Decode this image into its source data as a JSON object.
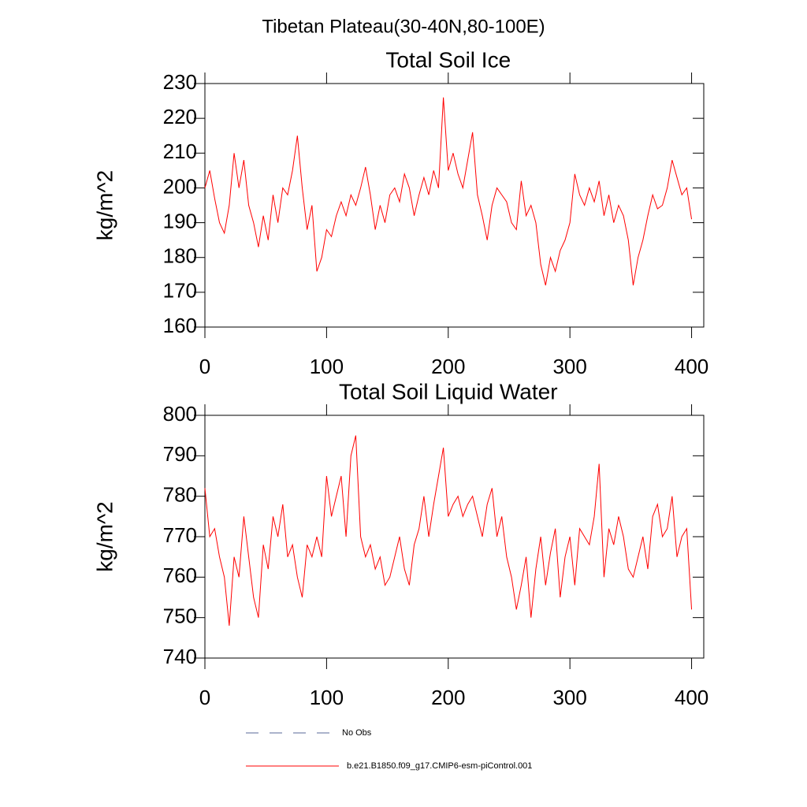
{
  "suptitle": "Tibetan Plateau(30-40N,80-100E)",
  "legend": [
    {
      "label": "No Obs",
      "color": "#5a6a99",
      "style": "dashed"
    }
  ],
  "chart_data": [
    {
      "type": "line",
      "title": "Total Soil Ice",
      "y_label": "kg/m^2",
      "x": [
        0,
        4,
        8,
        12,
        16,
        20,
        24,
        28,
        32,
        36,
        40,
        44,
        48,
        52,
        56,
        60,
        64,
        68,
        72,
        76,
        80,
        84,
        88,
        92,
        96,
        100,
        104,
        108,
        112,
        116,
        120,
        124,
        128,
        132,
        136,
        140,
        144,
        148,
        152,
        156,
        160,
        164,
        168,
        172,
        176,
        180,
        184,
        188,
        192,
        196,
        200,
        204,
        208,
        212,
        216,
        220,
        224,
        228,
        232,
        236,
        240,
        244,
        248,
        252,
        256,
        260,
        264,
        268,
        272,
        276,
        280,
        284,
        288,
        292,
        296,
        300,
        304,
        308,
        312,
        316,
        320,
        324,
        328,
        332,
        336,
        340,
        344,
        348,
        352,
        356,
        360,
        364,
        368,
        372,
        376,
        380,
        384,
        388,
        392,
        396,
        400
      ],
      "series": [
        {
          "name": "b.e21.B1850.f09_g17.CMIP6-esm-piControl.001",
          "color": "#ff0000",
          "values": [
            200,
            205,
            197,
            190,
            187,
            195,
            210,
            200,
            208,
            195,
            190,
            183,
            192,
            185,
            198,
            190,
            200,
            198,
            205,
            215,
            200,
            188,
            195,
            176,
            180,
            188,
            186,
            192,
            196,
            192,
            198,
            195,
            200,
            206,
            198,
            188,
            195,
            190,
            198,
            200,
            196,
            204,
            200,
            192,
            198,
            203,
            198,
            205,
            200,
            226,
            205,
            210,
            204,
            200,
            208,
            216,
            198,
            192,
            185,
            195,
            200,
            198,
            196,
            190,
            188,
            202,
            192,
            195,
            190,
            178,
            172,
            180,
            176,
            182,
            185,
            190,
            204,
            198,
            195,
            200,
            196,
            202,
            192,
            198,
            190,
            195,
            192,
            185,
            172,
            180,
            185,
            192,
            198,
            194,
            195,
            200,
            208,
            203,
            198,
            200,
            191
          ]
        }
      ],
      "xlim": [
        0,
        410
      ],
      "xticks": [
        0,
        100,
        200,
        300,
        400
      ],
      "ylim": [
        160,
        230
      ],
      "yticks": [
        160,
        170,
        180,
        190,
        200,
        210,
        220,
        230
      ]
    },
    {
      "type": "line",
      "title": "Total Soil Liquid Water",
      "y_label": "kg/m^2",
      "x": [
        0,
        4,
        8,
        12,
        16,
        20,
        24,
        28,
        32,
        36,
        40,
        44,
        48,
        52,
        56,
        60,
        64,
        68,
        72,
        76,
        80,
        84,
        88,
        92,
        96,
        100,
        104,
        108,
        112,
        116,
        120,
        124,
        128,
        132,
        136,
        140,
        144,
        148,
        152,
        156,
        160,
        164,
        168,
        172,
        176,
        180,
        184,
        188,
        192,
        196,
        200,
        204,
        208,
        212,
        216,
        220,
        224,
        228,
        232,
        236,
        240,
        244,
        248,
        252,
        256,
        260,
        264,
        268,
        272,
        276,
        280,
        284,
        288,
        292,
        296,
        300,
        304,
        308,
        312,
        316,
        320,
        324,
        328,
        332,
        336,
        340,
        344,
        348,
        352,
        356,
        360,
        364,
        368,
        372,
        376,
        380,
        384,
        388,
        392,
        396,
        400
      ],
      "series": [
        {
          "name": "b.e21.B1850.f09_g17.CMIP6-esm-piControl.001",
          "color": "#ff0000",
          "values": [
            782,
            770,
            772,
            765,
            760,
            748,
            765,
            760,
            775,
            765,
            755,
            750,
            768,
            762,
            775,
            770,
            778,
            765,
            768,
            760,
            755,
            768,
            765,
            770,
            765,
            785,
            775,
            780,
            785,
            770,
            790,
            795,
            770,
            765,
            768,
            762,
            765,
            758,
            760,
            765,
            770,
            762,
            758,
            768,
            772,
            780,
            770,
            778,
            785,
            792,
            775,
            778,
            780,
            775,
            778,
            780,
            775,
            770,
            778,
            782,
            770,
            775,
            765,
            760,
            752,
            758,
            765,
            750,
            762,
            770,
            758,
            766,
            772,
            755,
            765,
            770,
            758,
            772,
            770,
            768,
            775,
            788,
            760,
            772,
            768,
            775,
            770,
            762,
            760,
            765,
            770,
            762,
            775,
            778,
            770,
            772,
            780,
            765,
            770,
            772,
            752
          ]
        }
      ],
      "xlim": [
        0,
        410
      ],
      "xticks": [
        0,
        100,
        200,
        300,
        400
      ],
      "ylim": [
        740,
        800
      ],
      "yticks": [
        740,
        750,
        760,
        770,
        780,
        790,
        800
      ]
    }
  ]
}
